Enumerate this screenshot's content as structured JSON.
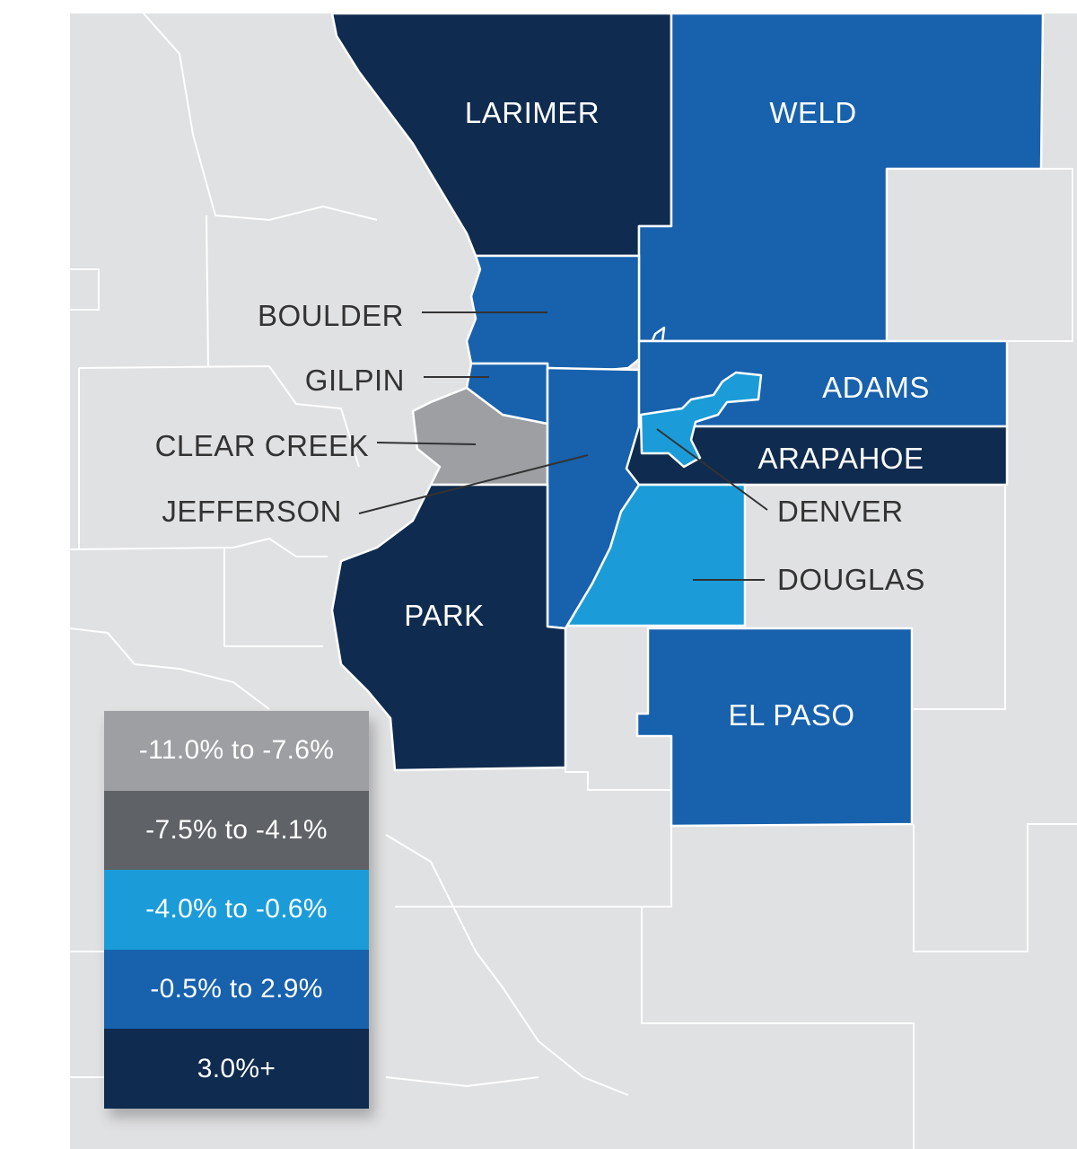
{
  "colors": {
    "bin1": "#9d9fa2",
    "bin2": "#5f6368",
    "bin3": "#1b9cd8",
    "bin4": "#1761ad",
    "bin5": "#0f2b4f",
    "background": "#e0e1e2"
  },
  "counties": {
    "larimer": "LARIMER",
    "weld": "WELD",
    "boulder": "BOULDER",
    "gilpin": "GILPIN",
    "clear_creek": "CLEAR CREEK",
    "jefferson": "JEFFERSON",
    "adams": "ADAMS",
    "arapahoe": "ARAPAHOE",
    "denver": "DENVER",
    "douglas": "DOUGLAS",
    "park": "PARK",
    "el_paso": "EL PASO"
  },
  "legend": [
    {
      "label": "-11.0% to -7.6%",
      "color": "#9d9fa2"
    },
    {
      "label": "-7.5% to -4.1%",
      "color": "#5f6368"
    },
    {
      "label": "-4.0% to -0.6%",
      "color": "#1b9cd8"
    },
    {
      "label": "-0.5% to 2.9%",
      "color": "#1761ad"
    },
    {
      "label": "3.0%+",
      "color": "#0f2b4f"
    }
  ]
}
